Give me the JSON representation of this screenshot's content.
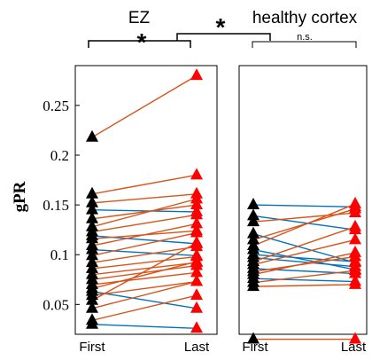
{
  "chart_data": [
    {
      "type": "line",
      "panel": "EZ",
      "title": "EZ",
      "ylabel": "gPR",
      "categories": [
        "First",
        "Last"
      ],
      "ylim": [
        0.02,
        0.29
      ],
      "yticks": [
        "0.05",
        "0.1",
        "0.15",
        "0.2",
        "0.25"
      ],
      "ytick_values": [
        0.05,
        0.1,
        0.15,
        0.2,
        0.25
      ],
      "increase_color": "#d95319",
      "decrease_color": "#0072bd",
      "first_marker_color": "#000000",
      "last_marker_color": "#ff0000",
      "pairs": [
        {
          "first": 0.218,
          "last": 0.28
        },
        {
          "first": 0.161,
          "last": 0.18
        },
        {
          "first": 0.152,
          "last": 0.161
        },
        {
          "first": 0.145,
          "last": 0.143
        },
        {
          "first": 0.136,
          "last": 0.15
        },
        {
          "first": 0.128,
          "last": 0.156
        },
        {
          "first": 0.123,
          "last": 0.14
        },
        {
          "first": 0.119,
          "last": 0.111
        },
        {
          "first": 0.116,
          "last": 0.124
        },
        {
          "first": 0.109,
          "last": 0.131
        },
        {
          "first": 0.105,
          "last": 0.099
        },
        {
          "first": 0.099,
          "last": 0.122
        },
        {
          "first": 0.092,
          "last": 0.108
        },
        {
          "first": 0.086,
          "last": 0.098
        },
        {
          "first": 0.08,
          "last": 0.092
        },
        {
          "first": 0.075,
          "last": 0.089
        },
        {
          "first": 0.07,
          "last": 0.082
        },
        {
          "first": 0.066,
          "last": 0.093
        },
        {
          "first": 0.063,
          "last": 0.046
        },
        {
          "first": 0.059,
          "last": 0.073
        },
        {
          "first": 0.054,
          "last": 0.112
        },
        {
          "first": 0.046,
          "last": 0.073
        },
        {
          "first": 0.034,
          "last": 0.059
        },
        {
          "first": 0.03,
          "last": 0.026
        }
      ]
    },
    {
      "type": "line",
      "panel": "healthy cortex",
      "title": "healthy cortex",
      "categories": [
        "First",
        "Last"
      ],
      "ylim": [
        0.02,
        0.29
      ],
      "increase_color": "#d95319",
      "decrease_color": "#0072bd",
      "first_marker_color": "#000000",
      "last_marker_color": "#ff0000",
      "pairs": [
        {
          "first": 0.15,
          "last": 0.148
        },
        {
          "first": 0.139,
          "last": 0.125
        },
        {
          "first": 0.133,
          "last": 0.142
        },
        {
          "first": 0.121,
          "last": 0.092
        },
        {
          "first": 0.115,
          "last": 0.146
        },
        {
          "first": 0.109,
          "last": 0.151
        },
        {
          "first": 0.105,
          "last": 0.085
        },
        {
          "first": 0.1,
          "last": 0.093
        },
        {
          "first": 0.097,
          "last": 0.088
        },
        {
          "first": 0.093,
          "last": 0.128
        },
        {
          "first": 0.09,
          "last": 0.115
        },
        {
          "first": 0.086,
          "last": 0.081
        },
        {
          "first": 0.083,
          "last": 0.098
        },
        {
          "first": 0.08,
          "last": 0.102
        },
        {
          "first": 0.076,
          "last": 0.073
        },
        {
          "first": 0.072,
          "last": 0.084
        },
        {
          "first": 0.068,
          "last": 0.07
        },
        {
          "first": 0.015,
          "last": 0.015
        }
      ]
    }
  ],
  "annotations": {
    "ez_significance": "*",
    "between_significance": "*",
    "healthy_significance": "n.s."
  }
}
